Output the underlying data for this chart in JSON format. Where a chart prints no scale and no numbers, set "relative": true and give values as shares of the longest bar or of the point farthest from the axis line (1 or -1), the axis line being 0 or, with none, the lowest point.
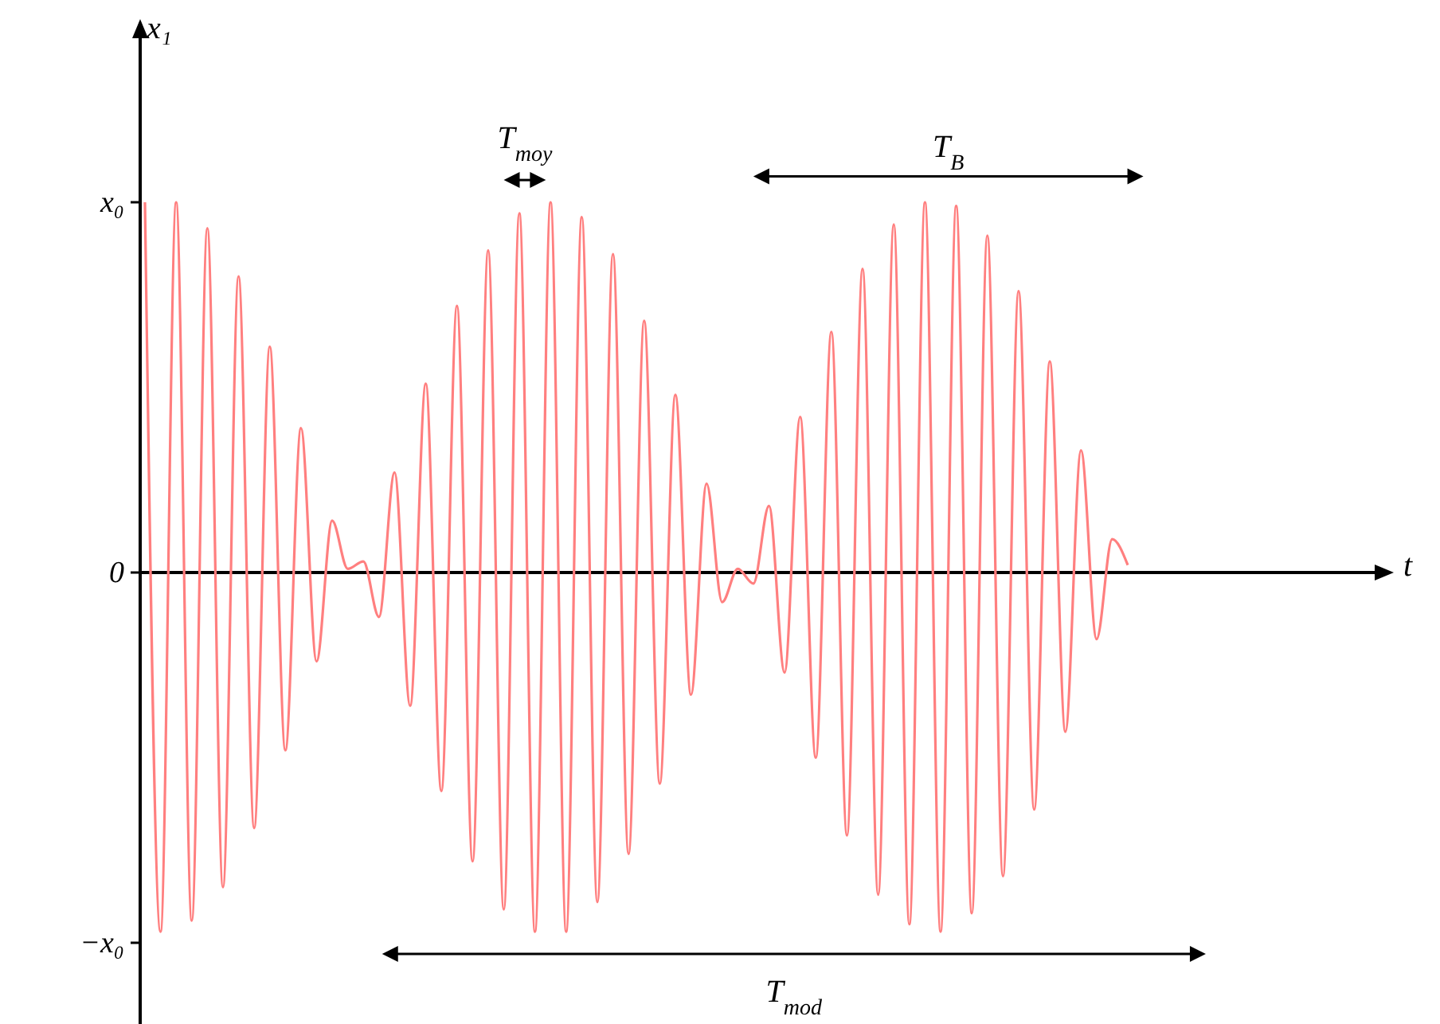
{
  "chart_data": {
    "type": "line",
    "ylabel": "x₁",
    "categories": [
      null,
      null,
      null,
      null,
      null,
      null,
      null,
      null,
      null,
      null,
      null,
      null,
      null,
      null,
      null,
      null,
      null,
      null,
      null,
      null,
      null,
      null,
      null,
      null,
      null,
      null,
      null,
      null,
      null,
      null,
      null,
      null,
      null,
      null,
      null,
      null,
      null,
      null,
      null,
      null,
      null,
      null,
      null,
      null,
      null,
      null,
      null,
      null,
      null,
      null,
      null,
      null,
      null,
      null,
      null,
      null,
      null,
      null,
      null,
      null,
      null,
      null,
      null,
      null
    ],
    "series": [
      {
        "color": "#ff7f7f",
        "values": [
          1.0,
          -0.97,
          1.0,
          -0.94,
          0.93,
          -0.85,
          0.8,
          -0.69,
          0.61,
          -0.48,
          0.39,
          -0.24,
          0.14,
          0.01,
          0.03,
          -0.12,
          0.27,
          -0.36,
          0.51,
          -0.59,
          0.72,
          -0.78,
          0.87,
          -0.91,
          0.97,
          -0.97,
          1.0,
          -0.97,
          0.96,
          -0.89,
          0.86,
          -0.76,
          0.68,
          -0.57,
          0.48,
          -0.33,
          0.24,
          -0.08,
          0.01,
          -0.03,
          0.18,
          -0.27,
          0.42,
          -0.5,
          0.65,
          -0.71,
          0.82,
          -0.87,
          0.94,
          -0.95,
          1.0,
          -0.97,
          0.99,
          -0.92,
          0.91,
          -0.82,
          0.76,
          -0.64,
          0.57,
          -0.43,
          0.33,
          -0.18,
          0.09,
          0.02
        ]
      }
    ],
    "relative": true,
    "marker": "none",
    "line_style": "solid",
    "annotations": [
      "x₀",
      "0",
      "−x₀",
      "t",
      "T$_{moy}$",
      "T$_{B}$",
      "T$_{mod}$"
    ]
  }
}
